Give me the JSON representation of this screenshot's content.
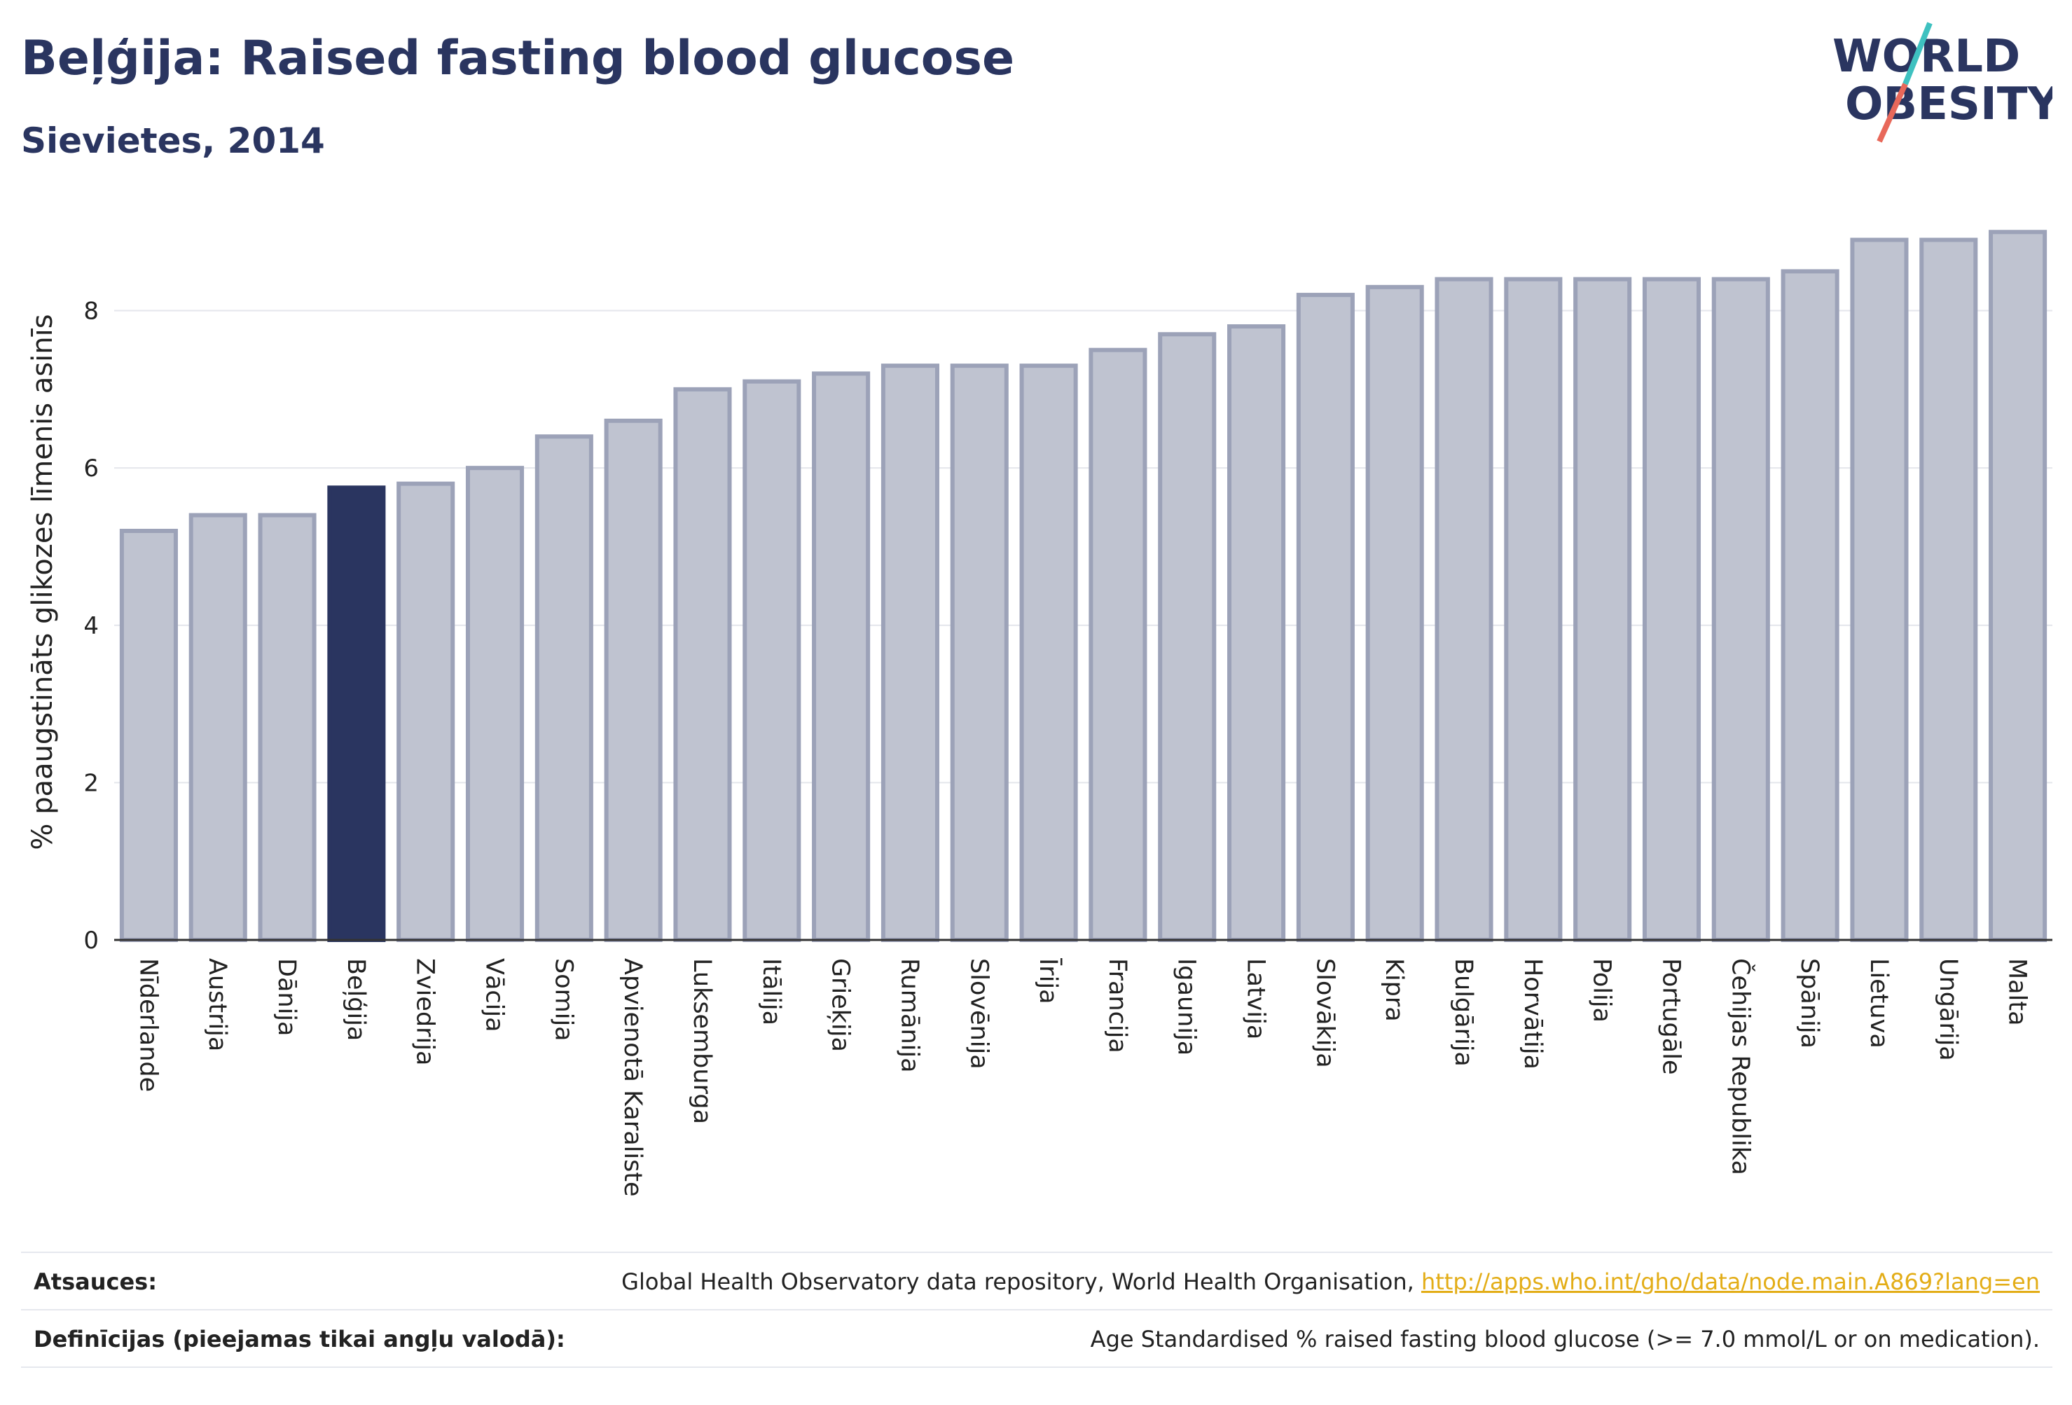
{
  "header": {
    "title": "Beļģija: Raised fasting blood glucose",
    "subtitle": "Sievietes, 2014"
  },
  "logo": {
    "line1": "WORLD",
    "line2": "OBESITY",
    "slash_colors": [
      "#3ec1c0",
      "#e8685a"
    ]
  },
  "colors": {
    "highlight": "#2a3560",
    "bar": "#bfc3d0",
    "bar_border": "#9ca2b8",
    "text": "#2a3560"
  },
  "chart_data": {
    "type": "bar",
    "ylabel": "% paaugstināts glikozes līmenis asinīs",
    "ylim": [
      0,
      9.1
    ],
    "yticks": [
      0,
      2,
      4,
      6,
      8
    ],
    "grid": true,
    "highlight": "Beļģija",
    "categories": [
      "Nīderlande",
      "Austrija",
      "Dānija",
      "Beļģija",
      "Zviedrija",
      "Vācija",
      "Somija",
      "Apvienotā Karaliste",
      "Luksemburga",
      "Itālija",
      "Grieķija",
      "Rumānija",
      "Slovēnija",
      "Īrija",
      "Francija",
      "Igaunija",
      "Latvija",
      "Slovākija",
      "Kipra",
      "Bulgārija",
      "Horvātija",
      "Polija",
      "Portugāle",
      "Čehijas Republika",
      "Spānija",
      "Lietuva",
      "Ungārija",
      "Malta"
    ],
    "values": [
      5.2,
      5.4,
      5.4,
      5.75,
      5.8,
      6.0,
      6.4,
      6.6,
      7.0,
      7.1,
      7.2,
      7.3,
      7.3,
      7.3,
      7.5,
      7.7,
      7.8,
      8.2,
      8.3,
      8.4,
      8.4,
      8.4,
      8.4,
      8.4,
      8.5,
      8.9,
      8.9,
      9.0
    ]
  },
  "footer": {
    "sources_label": "Atsauces:",
    "sources_text": "Global Health Observatory data repository, World Health Organisation, ",
    "sources_link": "http://apps.who.int/gho/data/node.main.A869?lang=en",
    "definitions_label": "Definīcijas (pieejamas tikai angļu valodā):",
    "definitions_text": "Age Standardised % raised fasting blood glucose (>= 7.0 mmol/L or on medication)."
  }
}
